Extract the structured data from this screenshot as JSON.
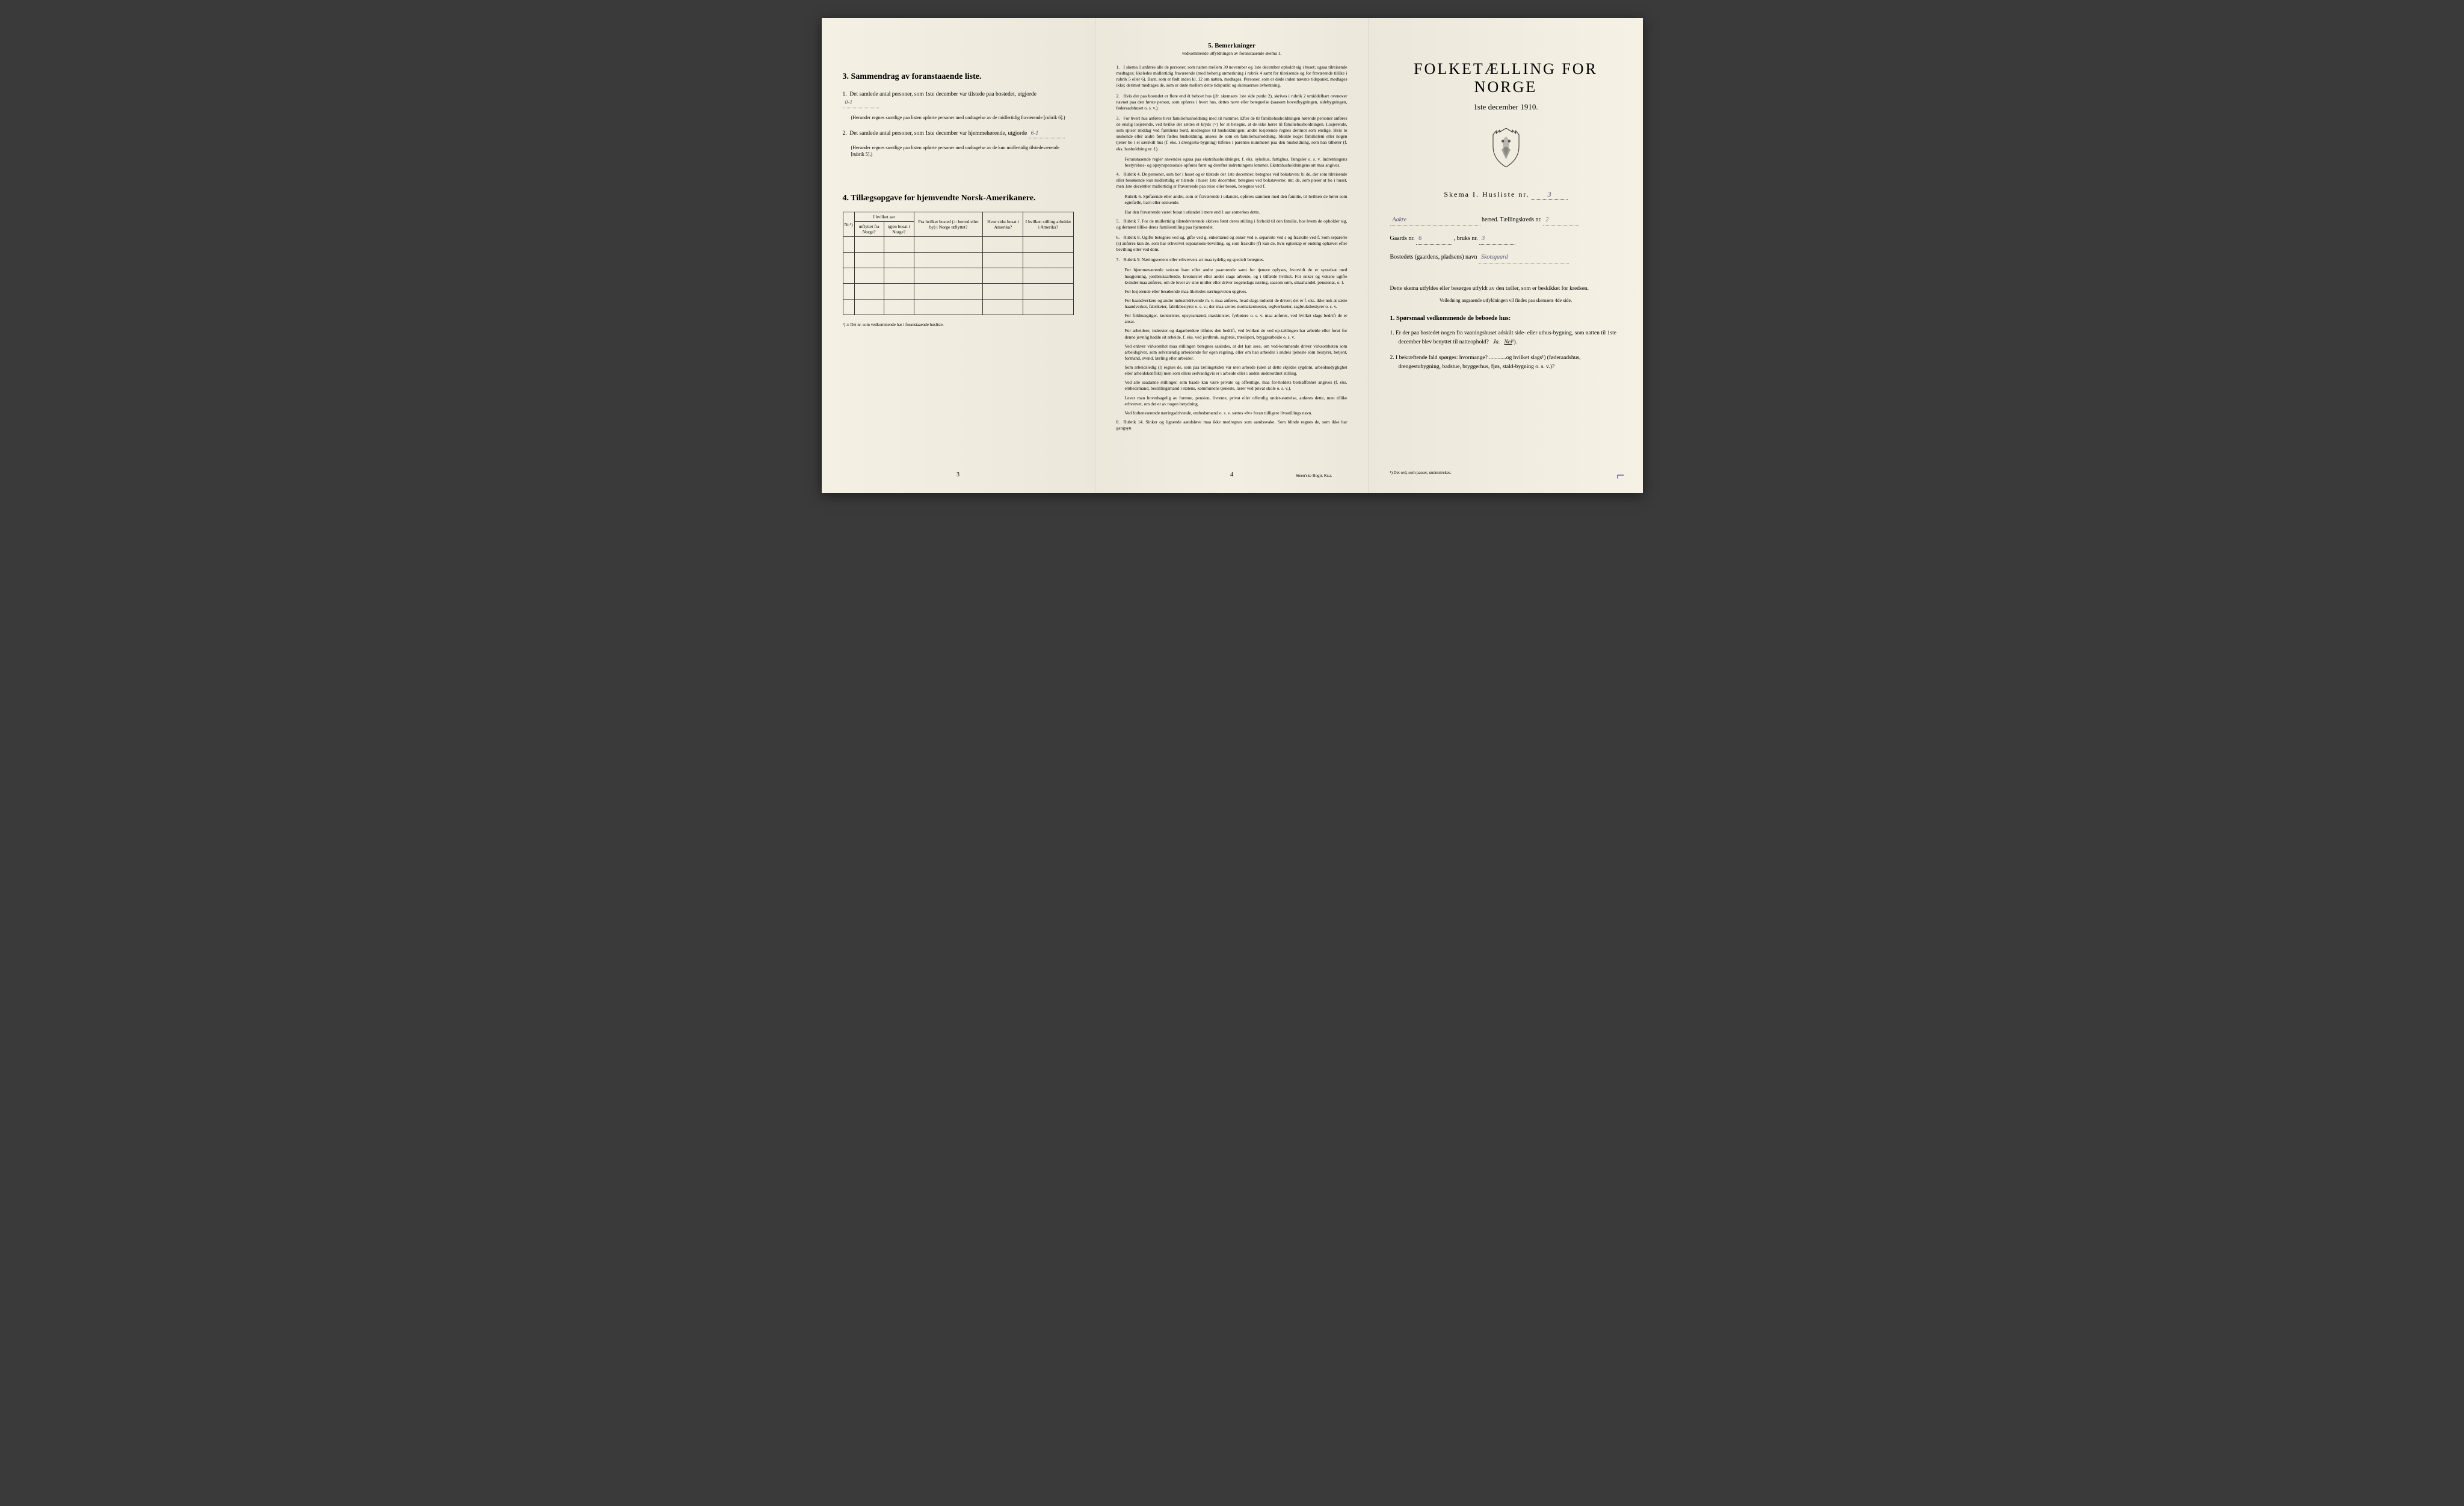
{
  "page_left": {
    "section3": {
      "title": "3.  Sammendrag av foranstaaende liste.",
      "item1_text": "Det samlede antal personer, som 1ste december var tilstede paa bostedet, utgjorde",
      "item1_value": "0-1",
      "item1_note": "(Herunder regnes samtlige paa listen opførte personer med undtagelse av de midlertidig fraværende [rubrik 6].)",
      "item2_text": "Det samlede antal personer, som 1ste december var hjemmehørende, utgjorde",
      "item2_value": "6-1",
      "item2_note": "(Herunder regnes samtlige paa listen opførte personer med undtagelse av de kun midlertidig tilstedeværende [rubrik 5].)"
    },
    "section4": {
      "title": "4.  Tillægsopgave for hjemvendte Norsk-Amerikanere.",
      "table": {
        "headers": {
          "nr": "Nr.¹)",
          "aar_header": "I hvilket aar",
          "utflyttet": "utflyttet fra Norge?",
          "igjen_bosat": "igjen bosat i Norge?",
          "fra_bosted": "Fra hvilket bosted (ɔ: herred eller by) i Norge utflyttet?",
          "hvor_sidst": "Hvor sidst bosat i Amerika?",
          "stilling": "I hvilken stilling arbeidet i Amerika?"
        },
        "rows": 5
      },
      "footnote": "¹) ɔ: Det nr. som vedkommende har i foranstaaende husliste."
    },
    "page_num": "3"
  },
  "page_center": {
    "title": "5.  Bemerkninger",
    "subtitle": "vedkommende utfyldningen av foranstaaende skema 1.",
    "items": [
      {
        "num": "1.",
        "text": "I skema 1 anføres alle de personer, som natten mellem 30 november og 1ste december opholdt sig i huset; ogsaa tilreisende medtages; likeledes midlertidig fraværende (med behørig anmerkning i rubrik 4 samt for tilreisende og for fraværende tillike i rubrik 5 eller 6). Barn, som er født inden kl. 12 om natten, medtages. Personer, som er døde inden nævnte tidspunkt, medtages ikke; derimot medtages de, som er døde mellem dette tidspunkt og skemaernes avhentning."
      },
      {
        "num": "2.",
        "text": "Hvis der paa bostedet er flere end ét beboet hus (jfr. skemaets 1ste side punkt 2), skrives i rubrik 2 umiddelbart ovenover navnet paa den første person, som opføres i hvert hus, dettes navn eller betegnelse (saasom hovedbygningen, sidebygningen, føderaadshuset o. s. v.)."
      },
      {
        "num": "3.",
        "text": "For hvert hus anføres hver familiehusholdning med sit nummer. Efter de til familiehusholdningen hørende personer anføres de enslig losjerende, ved hvilke der sættes et kryds (×) for at betegne, at de ikke hører til familiehusholdningen. Losjerende, som spiser middag ved familiens bord, medregnes til husholdningen; andre losjerende regnes derimot som enslige. Hvis to søskende eller andre fører fælles husholdning, ansees de som en familiehusholdning. Skulde noget familielem eller nogen tjener bo i et særskilt hus (f. eks. i drengestu-bygning) tilføies i parentes nummeret paa den husholdning, som han tilhører (f. eks. husholdning nr. 1)."
      }
    ],
    "para_items": [
      "Foranstaaende regler anvendes ogsaa paa ekstrahusholdninger, f. eks. sykehus, fattighus, fængsler o. s. v. Indretningens bestyrelses- og opsynspersonale opføres først og derefter indretningens lemmer. Ekstrahusholdningens art maa angives."
    ],
    "items2": [
      {
        "num": "4.",
        "text": "Rubrik 4. De personer, som bor i huset og er tilstede der 1ste december, betegnes ved bokstaven: b; de, der som tilreisende eller besøkende kun midlertidig er tilstede i huset 1ste december, betegnes ved bokstaverne: mt; de, som pleier at bo i huset, men 1ste december midlertidig er fraværende paa reise eller besøk, betegnes ved f."
      }
    ],
    "para_items2": [
      "Rubrik 6. Sjøfarende eller andre, som er fraværende i utlandet, opføres sammen med den familie, til hvilken de hører som egtefælle, barn eller søskende.",
      "Har den fraværende været bosat i utlandet i mere end 1 aar anmerkes dette."
    ],
    "items3": [
      {
        "num": "5.",
        "text": "Rubrik 7. For de midlertidig tilstedeværende skrives først deres stilling i forhold til den familie, hos hvem de opholder sig, og dernæst tillike deres familiestilling paa hjemstedet."
      },
      {
        "num": "6.",
        "text": "Rubrik 8. Ugifte betegnes ved ug, gifte ved g, enkemænd og enker ved e, separerte ved s og fraskilte ved f. Som separerte (s) anføres kun de, som har erhvervet separations-bevilling, og som fraskilte (f) kun de, hvis egteskap er endelig ophævet efter bevilling eller ved dom."
      },
      {
        "num": "7.",
        "text": "Rubrik 9. Næringsveiens eller erhvervets art maa tydelig og specielt betegnes."
      }
    ],
    "para_items3": [
      "For hjemmeværende voksne barn eller andre paarorende samt for tjenere oplyses, hvorvidt de er sysselsat med husgjerning, jordbruksarbeide, kreaturstel eller andet slags arbeide, og i tilfælde hvilket. For enker og voksne ugifte kvinder maa anføres, om de lever av sine midler eller driver nogenslags næring, saasom søm, smaahandel, pensionat, o. l.",
      "For losjerende eller besøkende maa likeledes næringsveien opgives.",
      "For haandverkere og andre industridrivende m. v. maa anføres, hvad slags industri de driver; det er f. eks. ikke nok at sætte haandverker, fabrikeier, fabrikbestyrer o. s. v.; der maa sættes skomakermester, teglverkseier, sagbruksbestyrer o. s. v.",
      "For fuldmægtiger, kontorister, opsynsmænd, maskinister, fyrbøtere o. s. v. maa anføres, ved hvilket slags bedrift de er ansat.",
      "For arbeidere, inderster og dagarbeidere tilføies den bedrift, ved hvilken de ved op-tællingen har arbeide eller forut for denne jevnlig hadde sit arbeide, f. eks. ved jordbruk, sagbruk, træsliperi, bryggearbeide o. s. v.",
      "Ved enhver virksomhet maa stillingen betegnes saaledes, at det kan sees, om ved-kommende driver virksomheten som arbeidsgiver, som selvstændig arbeidende for egen regning, eller om han arbeider i andres tjeneste som bestyrer, betjent, formand, svend, lærling eller arbeider.",
      "Som arbeidsledig (l) regnes de, som paa tællingstiden var uten arbeide (uten at dette skyldes sygdom, arbeidsudygtighet eller arbeidskonflikt) men som ellers sedvanligvis er i arbeide eller i anden underordnet stilling.",
      "Ved alle saadanne stillinger, som baade kan være private og offentlige, maa for-holdets beskaffenhet angives (f. eks. embedsmand, bestillingsmand i statens, kommunens tjeneste, lærer ved privat skole o. s. v.).",
      "Lever man hovedsagelig av formue, pension, livrente, privat eller offentlig under-støttelse, anføres dette, men tillike erhvervet, om det er av nogen betydning.",
      "Ved forhenværende næringsdrivende, embedsmænd o. s. v. sættes «fv» foran tidligere livsstillings navn."
    ],
    "items4": [
      {
        "num": "8.",
        "text": "Rubrik 14. Sinker og lignende aandsløve maa ikke medregnes som aandssvake. Som blinde regnes de, som ikke har gangsyn."
      }
    ],
    "page_num": "4",
    "printer": "Steen'ske Bogtr. Kr.a."
  },
  "page_right": {
    "main_title": "FOLKETÆLLING FOR NORGE",
    "date": "1ste december 1910.",
    "skema_label": "Skema I.  Husliste nr.",
    "skema_nr": "3",
    "herred_value": "Aakre",
    "herred_label": "herred.   Tællingskreds nr.",
    "kreds_nr": "2",
    "gaard_label": "Gaards nr.",
    "gaard_nr": "6",
    "bruks_label": ", bruks nr.",
    "bruks_nr": "3",
    "bosted_label": "Bostedets (gaardens, pladsens) navn",
    "bosted_value": "Skotsgaard",
    "instructions": "Dette skema utfyldes eller besørges utfyldt av den tæller, som er beskikket for kredsen.",
    "instructions_sub": "Veiledning angaaende utfyldningen vil findes paa skemaets 4de side.",
    "q_header": "1. Spørsmaal vedkommende de beboede hus:",
    "q1": "1.  Er der paa bostedet nogen fra vaaningshuset adskilt side- eller uthus-bygning, som natten til 1ste december blev benyttet til natteophold?",
    "q1_ja": "Ja.",
    "q1_nei": "Nei",
    "q1_sup": "¹).",
    "q2": "2.  I bekræftende fald spørges: hvormange? ............og hvilket slags¹) (føderaadshus, drengestubygning, badstue, bryggerhus, fjøs, stald-bygning o. s. v.)?",
    "footnote": "¹) Det ord, som passer, understrekes."
  }
}
